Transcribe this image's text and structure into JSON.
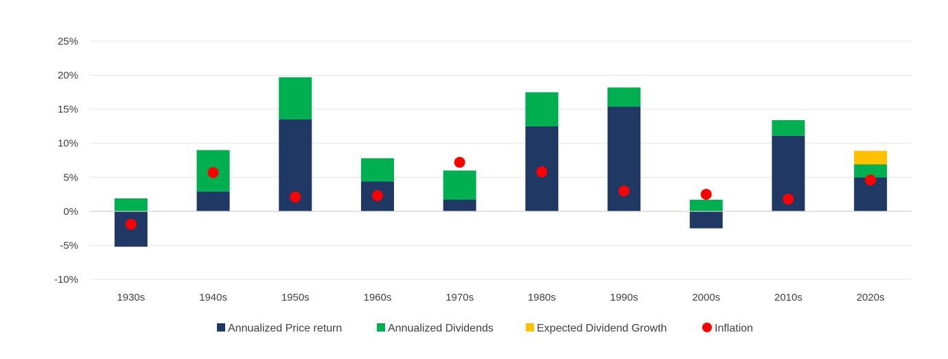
{
  "chart_data": {
    "type": "bar",
    "stacked": true,
    "title": "",
    "xlabel": "",
    "ylabel": "",
    "categories": [
      "1930s",
      "1940s",
      "1950s",
      "1960s",
      "1970s",
      "1980s",
      "1990s",
      "2000s",
      "2010s",
      "2020s"
    ],
    "ylim": [
      -10,
      25
    ],
    "yticks": [
      -10,
      -5,
      0,
      5,
      10,
      15,
      20,
      25
    ],
    "ytick_labels": [
      "-10%",
      "-5%",
      "0%",
      "5%",
      "10%",
      "15%",
      "20%",
      "25%"
    ],
    "grid": true,
    "legend_position": "bottom",
    "series": [
      {
        "name": "Annualized Price return",
        "kind": "bar",
        "color": "#203864",
        "values": [
          -5.2,
          2.9,
          13.5,
          4.4,
          1.7,
          12.5,
          15.4,
          -2.5,
          11.1,
          5.0
        ]
      },
      {
        "name": "Annualized Dividends",
        "kind": "bar",
        "color": "#00B050",
        "values": [
          1.9,
          6.1,
          6.2,
          3.4,
          4.3,
          5.0,
          2.8,
          1.7,
          2.3,
          1.9
        ]
      },
      {
        "name": "Expected Dividend Growth",
        "kind": "bar",
        "color": "#FFC000",
        "values": [
          0,
          0,
          0,
          0,
          0,
          0,
          0,
          0,
          0,
          2.0
        ]
      },
      {
        "name": "Inflation",
        "kind": "marker",
        "color": "#FF0000",
        "values": [
          -1.9,
          5.7,
          2.1,
          2.3,
          7.2,
          5.8,
          3.0,
          2.5,
          1.8,
          4.6
        ]
      }
    ]
  }
}
